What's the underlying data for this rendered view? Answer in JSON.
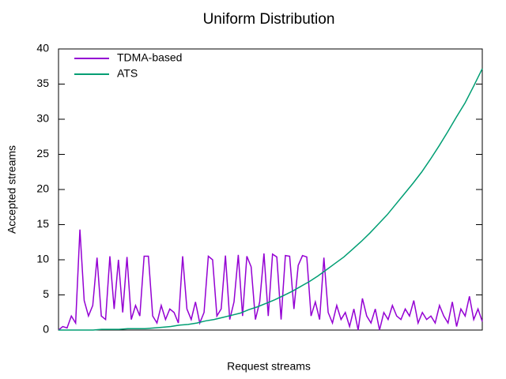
{
  "chart_data": {
    "type": "line",
    "title": "Uniform Distribution",
    "xlabel": "Request streams",
    "ylabel": "Accepted streams",
    "ylim": [
      0,
      40
    ],
    "yticks": [
      0,
      5,
      10,
      15,
      20,
      25,
      30,
      35,
      40
    ],
    "grid": false,
    "legend": "top-left",
    "series": [
      {
        "name": "TDMA-based",
        "color": "#9400d3",
        "values": [
          0,
          0.5,
          0.3,
          2,
          1,
          14.3,
          4.2,
          2,
          3.5,
          10.3,
          2,
          1.5,
          10.5,
          3,
          10,
          2.5,
          10.4,
          1.5,
          3.5,
          2,
          10.5,
          10.5,
          2,
          1,
          3.5,
          1.5,
          3,
          2.5,
          1,
          10.5,
          3,
          1.5,
          4,
          1,
          2.5,
          10.5,
          10,
          2,
          3,
          10.6,
          1.5,
          4,
          10.7,
          2,
          10.5,
          9,
          1.5,
          4,
          10.9,
          2,
          10.8,
          10.4,
          1.5,
          10.6,
          10.5,
          3,
          9.2,
          10.6,
          10.4,
          2,
          4,
          1.5,
          10.3,
          2.5,
          1,
          3.5,
          1.5,
          2.5,
          0.5,
          3,
          0,
          4.5,
          2,
          1,
          3,
          0,
          2.5,
          1.5,
          3.5,
          2,
          1.5,
          3,
          2,
          4.2,
          1,
          2.5,
          1.5,
          2,
          1,
          3.5,
          2,
          1,
          4,
          0.5,
          3,
          2,
          4.8,
          1.5,
          3,
          1.2
        ]
      },
      {
        "name": "ATS",
        "color": "#009e73",
        "values": [
          0,
          0,
          0,
          0,
          0,
          0.1,
          0.1,
          0.1,
          0.2,
          0.2,
          0.2,
          0.3,
          0.4,
          0.5,
          0.7,
          0.8,
          1.0,
          1.3,
          1.5,
          1.8,
          2.1,
          2.4,
          2.9,
          3.3,
          3.8,
          4.3,
          4.9,
          5.5,
          6.2,
          6.9,
          7.7,
          8.6,
          9.5,
          10.4,
          11.5,
          12.6,
          13.8,
          15.1,
          16.4,
          17.9,
          19.4,
          20.9,
          22.5,
          24.3,
          26.2,
          28.2,
          30.3,
          32.3,
          34.7,
          37.2
        ]
      }
    ]
  }
}
